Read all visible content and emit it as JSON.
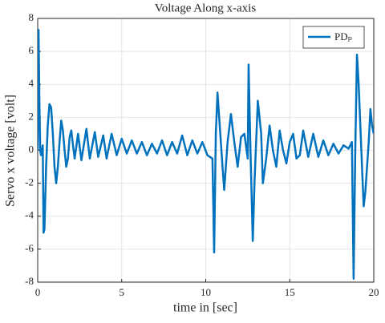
{
  "chart_data": {
    "type": "line",
    "title": "Voltage Along x-axis",
    "xlabel": "time in [sec]",
    "ylabel": "Servo x voltage [volt]",
    "x": [
      0,
      0.05,
      0.1,
      0.15,
      0.2,
      0.3,
      0.35,
      0.4,
      0.5,
      0.6,
      0.7,
      0.8,
      0.9,
      1.0,
      1.1,
      1.2,
      1.3,
      1.4,
      1.5,
      1.6,
      1.7,
      1.8,
      1.9,
      2.0,
      2.1,
      2.2,
      2.4,
      2.6,
      2.9,
      3.1,
      3.4,
      3.6,
      3.9,
      4.1,
      4.4,
      4.7,
      5.0,
      5.3,
      5.6,
      5.9,
      6.2,
      6.5,
      6.8,
      7.1,
      7.4,
      7.7,
      8.0,
      8.3,
      8.6,
      8.9,
      9.2,
      9.5,
      9.8,
      10.1,
      10.4,
      10.5,
      10.6,
      10.7,
      10.8,
      11.0,
      11.1,
      11.3,
      11.5,
      11.7,
      11.9,
      12.1,
      12.3,
      12.5,
      12.55,
      12.65,
      12.8,
      12.9,
      13.1,
      13.3,
      13.4,
      13.6,
      13.8,
      14.0,
      14.2,
      14.4,
      14.6,
      14.8,
      15.0,
      15.2,
      15.4,
      15.6,
      15.8,
      16.1,
      16.4,
      16.7,
      17.0,
      17.3,
      17.6,
      17.9,
      18.2,
      18.5,
      18.7,
      18.8,
      18.9,
      19.0,
      19.1,
      19.3,
      19.4,
      19.5,
      19.7,
      19.8,
      19.9,
      20.0
    ],
    "series": [
      {
        "name": "PDₚ",
        "color": "#0072bd",
        "values": [
          0,
          7.3,
          3,
          0,
          -0.3,
          0.3,
          -5,
          -4.8,
          -1,
          1.5,
          2.8,
          2.6,
          1,
          -1,
          -2,
          -1,
          0.5,
          1.8,
          1.2,
          0,
          -1,
          -0.5,
          0.8,
          1.2,
          0.3,
          -0.5,
          1.0,
          -0.6,
          1.3,
          -0.5,
          1.1,
          -0.4,
          0.9,
          -0.5,
          1.0,
          -0.3,
          0.7,
          -0.2,
          0.6,
          -0.2,
          0.5,
          -0.3,
          0.4,
          -0.2,
          0.6,
          -0.3,
          0.5,
          -0.2,
          0.9,
          -0.3,
          0.6,
          -0.2,
          0.5,
          -0.3,
          -0.5,
          -6.2,
          1,
          3.5,
          2,
          -1,
          -2.4,
          0.5,
          2.2,
          0.5,
          -1,
          0.8,
          1,
          -0.5,
          5.2,
          0.5,
          -5.5,
          -2,
          3,
          1,
          -2,
          -0.5,
          1.5,
          0,
          -1,
          1.2,
          0,
          -0.8,
          0.5,
          1,
          -0.5,
          -0.3,
          1.2,
          -0.4,
          1.0,
          -0.4,
          0.6,
          -0.3,
          0.4,
          -0.2,
          0.3,
          0.1,
          0.5,
          -7.8,
          0,
          5.8,
          4,
          -1,
          -3.4,
          -2.5,
          0.5,
          2.5,
          1.5,
          1
        ]
      }
    ],
    "xlim": [
      0,
      20
    ],
    "xticks": [
      0,
      5,
      10,
      15,
      20
    ],
    "ylim": [
      -8,
      8
    ],
    "yticks": [
      -8,
      -6,
      -4,
      -2,
      0,
      2,
      4,
      6,
      8
    ],
    "grid": true,
    "legend": "top-right"
  }
}
